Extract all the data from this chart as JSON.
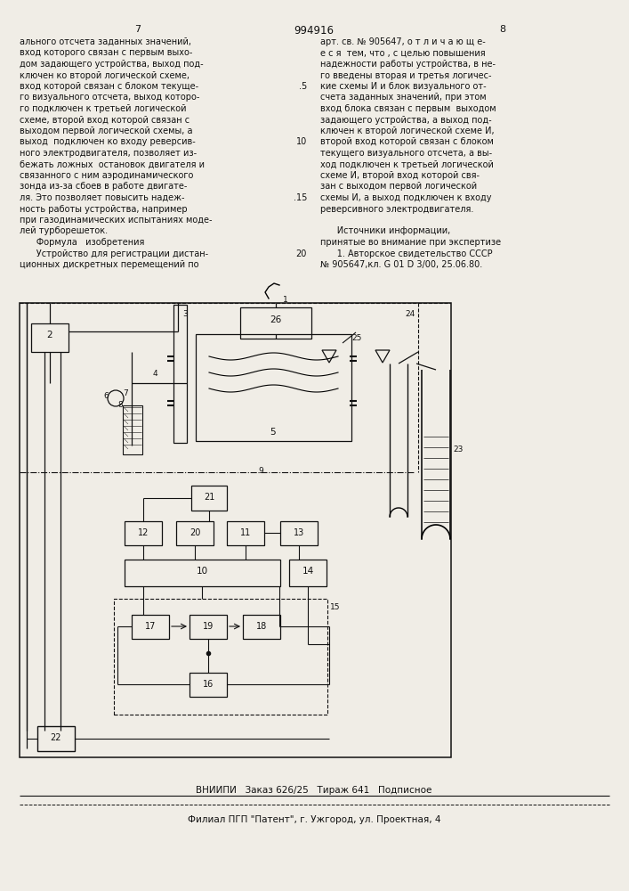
{
  "bg_color": "#f0ede6",
  "page_number_left": "7",
  "patent_number": "994916",
  "page_number_right": "8",
  "left_column_text": [
    "ального отсчета заданных значений,",
    "вход которого связан с первым выхо-",
    "дом задающего устройства, выход под-",
    "ключен ко второй логической схеме,",
    "вход которой связан с блоком текуще-",
    "го визуального отсчета, выход которо-",
    "го подключен к третьей логической",
    "схеме, второй вход которой связан с",
    "выходом первой логической схемы, а",
    "выход  подключен ко входу реверсив-",
    "ного электродвигателя, позволяет из-",
    "бежать ложных  остановок двигателя и",
    "связанного с ним аэродинамического",
    "зонда из-за сбоев в работе двигате-",
    "ля. Это позволяет повысить надеж-",
    "ность работы устройства, например",
    "при газодинамических испытаниях моде-",
    "лей турборешеток.",
    "      Формула   изобретения",
    "      Устройство для регистрации дистан-",
    "ционных дискретных перемещений по"
  ],
  "right_column_text": [
    "арт. св. № 905647, о т л и ч а ю щ е-",
    "е с я  тем, что , с целью повышения",
    "надежности работы устройства, в не-",
    "го введены вторая и третья логичес-",
    "кие схемы И и блок визуального от-",
    "счета заданных значений, при этом",
    "вход блока связан с первым  выходом",
    "задающего устройства, а выход под-",
    "ключен к второй логической схеме И,",
    "второй вход которой связан с блоком",
    "текущего визуального отсчета, а вы-",
    "ход подключен к третьей логической",
    "схеме И, второй вход которой свя-",
    "зан с выходом первой логической",
    "схемы И, а выход подключен к входу",
    "реверсивного электродвигателя.",
    "",
    "      Источники информации,",
    "принятые во внимание при экспертизе",
    "      1. Авторское свидетельство СССР",
    "№ 905647,кл. G 01 D 3/00, 25.06.80."
  ],
  "line_numbers": [
    ".5",
    "10",
    ".15",
    "20"
  ],
  "line_number_rows": [
    4,
    9,
    14,
    19
  ],
  "footer_line1": "ВНИИПИ   Заказ 626/25   Тираж 641   Подписное",
  "footer_line2": "Филиал ПГП \"Патент\", г. Ужгород, ул. Проектная, 4"
}
